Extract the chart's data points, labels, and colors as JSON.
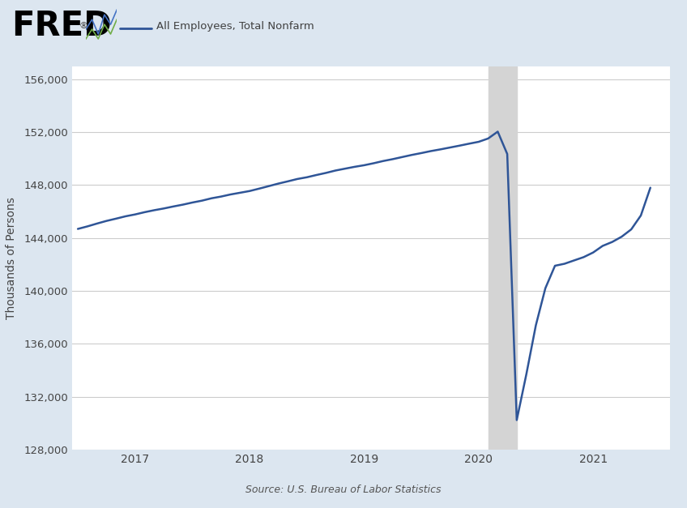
{
  "title": "All Employees, Total Nonfarm",
  "ylabel": "Thousands of Persons",
  "source": "Source: U.S. Bureau of Labor Statistics",
  "line_color": "#2f5597",
  "line_width": 1.8,
  "bg_color": "#dce6f0",
  "plot_bg_color": "#ffffff",
  "shade_color": "#d4d4d4",
  "shade_start": 2020.0833,
  "shade_end": 2020.3333,
  "ylim": [
    128000,
    157000
  ],
  "yticks": [
    128000,
    132000,
    136000,
    140000,
    144000,
    148000,
    152000,
    156000
  ],
  "xlim_start": 2016.45,
  "xlim_end": 2021.67,
  "data": {
    "dates_float": [
      2016.5,
      2016.583,
      2016.667,
      2016.75,
      2016.833,
      2016.917,
      2017.0,
      2017.083,
      2017.167,
      2017.25,
      2017.333,
      2017.417,
      2017.5,
      2017.583,
      2017.667,
      2017.75,
      2017.833,
      2017.917,
      2018.0,
      2018.083,
      2018.167,
      2018.25,
      2018.333,
      2018.417,
      2018.5,
      2018.583,
      2018.667,
      2018.75,
      2018.833,
      2018.917,
      2019.0,
      2019.083,
      2019.167,
      2019.25,
      2019.333,
      2019.417,
      2019.5,
      2019.583,
      2019.667,
      2019.75,
      2019.833,
      2019.917,
      2020.0,
      2020.083,
      2020.167,
      2020.25,
      2020.333,
      2020.417,
      2020.5,
      2020.583,
      2020.667,
      2020.75,
      2020.833,
      2020.917,
      2021.0,
      2021.083,
      2021.167,
      2021.25,
      2021.333,
      2021.417,
      2021.5
    ],
    "values": [
      144685,
      144875,
      145090,
      145290,
      145460,
      145640,
      145780,
      145950,
      146100,
      146230,
      146380,
      146520,
      146680,
      146820,
      147000,
      147130,
      147290,
      147420,
      147550,
      147730,
      147920,
      148110,
      148280,
      148460,
      148590,
      148760,
      148920,
      149100,
      149240,
      149380,
      149500,
      149650,
      149820,
      149960,
      150120,
      150280,
      150420,
      150570,
      150700,
      150840,
      150980,
      151130,
      151270,
      151520,
      152040,
      150350,
      130230,
      133700,
      137400,
      140200,
      141900,
      142050,
      142300,
      142550,
      142900,
      143400,
      143700,
      144100,
      144650,
      145700,
      147800
    ]
  },
  "xtick_positions": [
    2017.0,
    2018.0,
    2019.0,
    2020.0,
    2021.0
  ],
  "xtick_labels": [
    "2017",
    "2018",
    "2019",
    "2020",
    "2021"
  ],
  "fred_color": "#000000",
  "legend_line_color": "#2f5597",
  "legend_label": "All Employees, Total Nonfarm"
}
